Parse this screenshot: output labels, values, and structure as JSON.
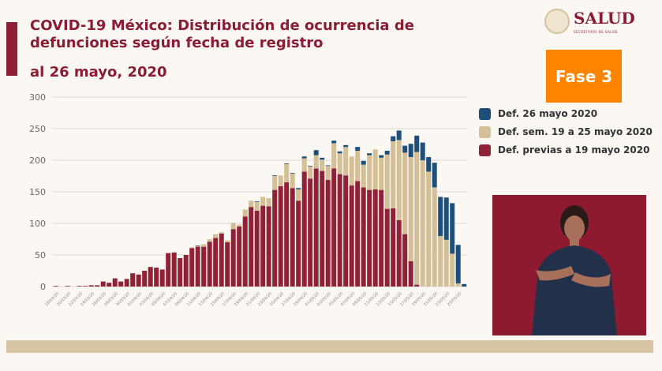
{
  "header": {
    "title_line1": "COVID-19 México: Distribución de ocurrencia de",
    "title_line2": "defunciones según fecha de registro",
    "title_line3": "al 26 mayo, 2020"
  },
  "logo": {
    "name": "SALUD",
    "subtitle": "SECRETARÍA DE SALUD"
  },
  "phase_badge": {
    "label": "Fase 3",
    "color": "#fe8400"
  },
  "chart_data": {
    "type": "bar",
    "stacked": true,
    "ylim": [
      0,
      300
    ],
    "yticks": [
      0,
      50,
      100,
      150,
      200,
      250,
      300
    ],
    "grid": true,
    "legend": "right",
    "categories": [
      "18/03/20",
      "19/03/20",
      "20/03/20",
      "21/03/20",
      "22/03/20",
      "23/03/20",
      "24/03/20",
      "25/03/20",
      "26/03/20",
      "27/03/20",
      "28/03/20",
      "29/03/20",
      "30/03/20",
      "31/03/20",
      "01/04/20",
      "02/04/20",
      "03/04/20",
      "04/04/20",
      "05/04/20",
      "06/04/20",
      "07/04/20",
      "08/04/20",
      "09/04/20",
      "10/04/20",
      "11/04/20",
      "12/04/20",
      "13/04/20",
      "14/04/20",
      "15/04/20",
      "16/04/20",
      "17/04/20",
      "18/04/20",
      "19/04/20",
      "20/04/20",
      "21/04/20",
      "22/04/20",
      "23/04/20",
      "24/04/20",
      "25/04/20",
      "26/04/20",
      "27/04/20",
      "28/04/20",
      "29/04/20",
      "30/04/20",
      "01/05/20",
      "02/05/20",
      "03/05/20",
      "04/05/20",
      "05/05/20",
      "06/05/20",
      "07/05/20",
      "08/05/20",
      "09/05/20",
      "10/05/20",
      "11/05/20",
      "12/05/20",
      "13/05/20",
      "14/05/20",
      "15/05/20",
      "16/05/20",
      "17/05/20",
      "18/05/20",
      "19/05/20",
      "20/05/20",
      "21/05/20",
      "22/05/20",
      "23/05/20",
      "24/05/20",
      "25/05/20",
      "26/05/20"
    ],
    "series": [
      {
        "name": "Def. previas a 19 mayo 2020",
        "color": "#8f2239",
        "values": [
          1,
          0,
          1,
          0,
          1,
          1,
          2,
          2,
          8,
          6,
          13,
          8,
          12,
          21,
          19,
          25,
          31,
          30,
          27,
          53,
          54,
          45,
          50,
          61,
          63,
          63,
          71,
          77,
          84,
          70,
          91,
          95,
          111,
          126,
          120,
          128,
          127,
          153,
          159,
          165,
          156,
          136,
          182,
          171,
          187,
          183,
          169,
          187,
          178,
          176,
          160,
          167,
          157,
          153,
          154,
          153,
          123,
          124,
          105,
          83,
          40,
          3,
          0,
          0,
          0,
          0,
          0,
          0,
          0,
          0
        ]
      },
      {
        "name": "Def. sem. 19 a 25 mayo 2020",
        "color": "#d4bf96",
        "values": [
          0,
          0,
          0,
          0,
          0,
          0,
          0,
          0,
          0,
          0,
          0,
          0,
          0,
          0,
          0,
          0,
          0,
          0,
          0,
          0,
          0,
          0,
          0,
          1,
          1,
          4,
          4,
          6,
          2,
          3,
          10,
          3,
          11,
          10,
          14,
          14,
          13,
          22,
          17,
          29,
          23,
          18,
          21,
          19,
          21,
          18,
          22,
          40,
          33,
          45,
          46,
          48,
          36,
          55,
          63,
          51,
          86,
          106,
          127,
          129,
          165,
          210,
          200,
          182,
          157,
          80,
          74,
          52,
          5,
          0
        ]
      },
      {
        "name": "Def. 26 mayo 2020",
        "color": "#1d4f7a",
        "values": [
          0,
          0,
          0,
          0,
          0,
          0,
          0,
          0,
          0,
          0,
          0,
          0,
          0,
          0,
          0,
          0,
          0,
          0,
          0,
          0,
          0,
          0,
          0,
          0,
          1,
          0,
          0,
          0,
          0,
          0,
          0,
          0,
          0,
          0,
          1,
          0,
          0,
          1,
          0,
          1,
          1,
          2,
          3,
          1,
          8,
          3,
          1,
          4,
          3,
          3,
          0,
          6,
          6,
          3,
          0,
          4,
          6,
          8,
          15,
          11,
          21,
          26,
          28,
          23,
          39,
          62,
          67,
          80,
          61,
          4
        ]
      }
    ]
  }
}
